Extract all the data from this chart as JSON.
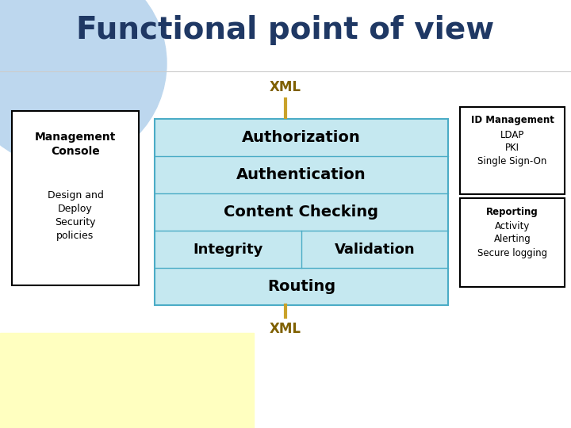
{
  "title": "Functional point of view",
  "title_color": "#1F3864",
  "title_fontsize": 28,
  "bg_color": "#FFFFFF",
  "light_blue_circle_color": "#BDD7EE",
  "light_yellow_rect_color": "#FFFFC0",
  "center_box_color": "#C5E8F0",
  "center_box_border": "#4BACC6",
  "xml_label": "XML",
  "xml_color": "#7F6000",
  "xml_line_color": "#C9A22A",
  "center_rows": [
    "Authorization",
    "Authentication",
    "Content Checking",
    null,
    "Routing"
  ],
  "integrity_label": "Integrity",
  "validation_label": "Validation",
  "right_top_lines": [
    "ID Management",
    "LDAP",
    "PKI",
    "Single Sign-On"
  ],
  "right_bottom_lines": [
    "Reporting",
    "Activity",
    "Alerting",
    "Secure logging"
  ]
}
